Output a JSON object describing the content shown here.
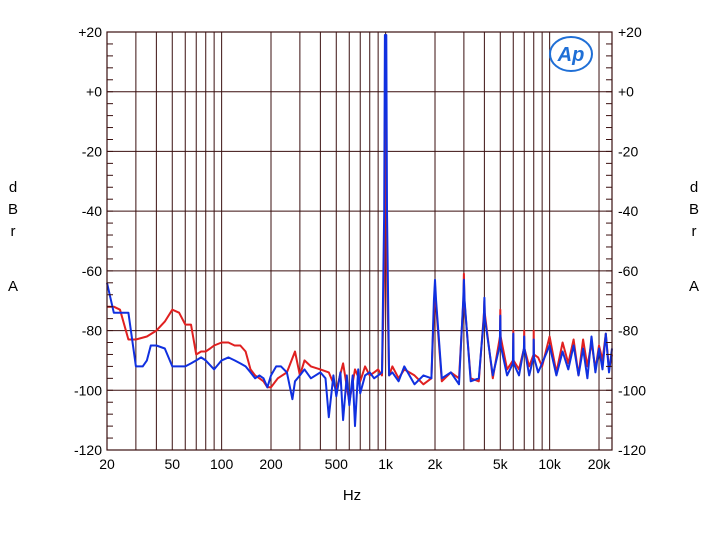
{
  "chart_data": {
    "type": "line",
    "title": "",
    "xlabel": "Hz",
    "ylabel_left": [
      "d",
      "B",
      "r",
      "",
      "A"
    ],
    "ylabel_right": [
      "d",
      "B",
      "r",
      "",
      "A"
    ],
    "x_scale": "log",
    "xlim": [
      20,
      24000
    ],
    "ylim": [
      -120,
      20
    ],
    "grid": true,
    "x_ticks": [
      {
        "value": 20,
        "label": "20"
      },
      {
        "value": 50,
        "label": "50"
      },
      {
        "value": 100,
        "label": "100"
      },
      {
        "value": 200,
        "label": "200"
      },
      {
        "value": 500,
        "label": "500"
      },
      {
        "value": 1000,
        "label": "1k"
      },
      {
        "value": 2000,
        "label": "2k"
      },
      {
        "value": 5000,
        "label": "5k"
      },
      {
        "value": 10000,
        "label": "10k"
      },
      {
        "value": 20000,
        "label": "20k"
      }
    ],
    "y_ticks": [
      {
        "value": 20,
        "label": "+20"
      },
      {
        "value": 0,
        "label": "+0"
      },
      {
        "value": -20,
        "label": "-20"
      },
      {
        "value": -40,
        "label": "-40"
      },
      {
        "value": -60,
        "label": "-60"
      },
      {
        "value": -80,
        "label": "-80"
      },
      {
        "value": -100,
        "label": "-100"
      },
      {
        "value": -120,
        "label": "-120"
      }
    ],
    "logo": "Ap",
    "colors": {
      "grid": "#3a0f0f",
      "series_red": "#e02020",
      "series_blue": "#1030e0",
      "logo": "#1f6fd6"
    },
    "series": [
      {
        "color": "#e02020",
        "x": [
          20,
          22,
          24,
          27,
          30,
          35,
          40,
          45,
          50,
          55,
          60,
          65,
          70,
          75,
          80,
          85,
          90,
          100,
          110,
          120,
          130,
          140,
          150,
          160,
          170,
          180,
          190,
          200,
          220,
          250,
          280,
          300,
          320,
          350,
          400,
          450,
          500,
          550,
          600,
          650,
          700,
          750,
          800,
          850,
          900,
          950,
          980,
          1000,
          1020,
          1050,
          1100,
          1200,
          1300,
          1500,
          1700,
          1900,
          1980,
          2000,
          2020,
          2200,
          2500,
          2800,
          2980,
          3000,
          3020,
          3300,
          3700,
          3980,
          4000,
          4020,
          4500,
          4980,
          5000,
          5020,
          5500,
          5980,
          6000,
          6020,
          6500,
          6980,
          7000,
          7020,
          7500,
          7980,
          8000,
          8020,
          8500,
          9000,
          10000,
          11000,
          12000,
          13000,
          14000,
          15000,
          16000,
          17000,
          18000,
          19000,
          20000,
          21000,
          22000,
          23000,
          24000
        ],
        "y": [
          -72,
          -72,
          -73,
          -83,
          -83,
          -82,
          -80,
          -77,
          -73,
          -74,
          -78,
          -78,
          -88,
          -87,
          -87,
          -86,
          -85,
          -84,
          -84,
          -85,
          -85,
          -87,
          -93,
          -95,
          -96,
          -97,
          -99,
          -99,
          -96,
          -94,
          -87,
          -95,
          -90,
          -92,
          -93,
          -94,
          -100,
          -91,
          -104,
          -93,
          -97,
          -92,
          -95,
          -94,
          -93,
          -95,
          -60,
          17,
          -60,
          -95,
          -92,
          -96,
          -93,
          -95,
          -98,
          -96,
          -70,
          -65,
          -70,
          -97,
          -94,
          -96,
          -70,
          -61,
          -70,
          -96,
          -97,
          -74,
          -70,
          -74,
          -96,
          -82,
          -73,
          -82,
          -93,
          -90,
          -80,
          -90,
          -93,
          -86,
          -80,
          -86,
          -92,
          -88,
          -80,
          -88,
          -89,
          -92,
          -82,
          -94,
          -84,
          -91,
          -83,
          -95,
          -83,
          -92,
          -84,
          -93,
          -85,
          -90,
          -81,
          -93,
          -88
        ]
      },
      {
        "color": "#1030e0",
        "x": [
          20,
          22,
          25,
          27,
          30,
          33,
          35,
          37,
          40,
          45,
          50,
          55,
          60,
          65,
          70,
          75,
          80,
          90,
          100,
          110,
          120,
          130,
          140,
          150,
          160,
          170,
          180,
          190,
          200,
          215,
          230,
          250,
          270,
          280,
          300,
          320,
          350,
          400,
          430,
          450,
          480,
          500,
          530,
          550,
          580,
          600,
          630,
          650,
          680,
          700,
          750,
          800,
          850,
          900,
          950,
          980,
          990,
          1000,
          1010,
          1020,
          1050,
          1100,
          1200,
          1300,
          1500,
          1700,
          1900,
          1970,
          2000,
          2030,
          2200,
          2500,
          2800,
          2970,
          3000,
          3030,
          3300,
          3700,
          3970,
          4000,
          4030,
          4500,
          4970,
          5000,
          5030,
          5500,
          5970,
          6000,
          6030,
          6500,
          6970,
          7000,
          7030,
          7500,
          7970,
          8000,
          8030,
          8500,
          9000,
          10000,
          11000,
          12000,
          13000,
          14000,
          15000,
          16000,
          17000,
          18000,
          19000,
          20000,
          21000,
          22000,
          23000,
          24000
        ],
        "y": [
          -64,
          -74,
          -74,
          -74,
          -92,
          -92,
          -90,
          -85,
          -85,
          -86,
          -92,
          -92,
          -92,
          -91,
          -90,
          -89,
          -90,
          -93,
          -90,
          -89,
          -90,
          -91,
          -92,
          -94,
          -96,
          -95,
          -96,
          -99,
          -95,
          -92,
          -92,
          -94,
          -103,
          -97,
          -95,
          -93,
          -96,
          -94,
          -96,
          -109,
          -95,
          -102,
          -94,
          -110,
          -95,
          -105,
          -95,
          -112,
          -93,
          -101,
          -95,
          -94,
          -96,
          -95,
          -94,
          -40,
          19,
          10,
          19,
          -40,
          -95,
          -94,
          -97,
          -92,
          -98,
          -95,
          -96,
          -70,
          -63,
          -70,
          -96,
          -94,
          -98,
          -70,
          -63,
          -70,
          -97,
          -96,
          -76,
          -69,
          -76,
          -95,
          -85,
          -75,
          -85,
          -95,
          -91,
          -81,
          -91,
          -95,
          -86,
          -82,
          -86,
          -95,
          -89,
          -83,
          -89,
          -94,
          -91,
          -85,
          -95,
          -87,
          -93,
          -85,
          -95,
          -86,
          -96,
          -82,
          -94,
          -86,
          -93,
          -81,
          -94,
          -86
        ]
      }
    ]
  }
}
